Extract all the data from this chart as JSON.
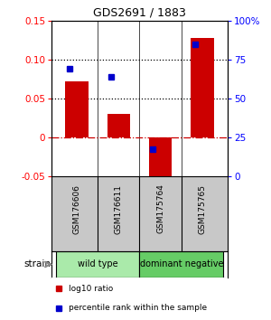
{
  "title": "GDS2691 / 1883",
  "samples": [
    "GSM176606",
    "GSM176611",
    "GSM175764",
    "GSM175765"
  ],
  "log10_ratio": [
    0.072,
    0.03,
    -0.055,
    0.128
  ],
  "percentile_rank": [
    0.088,
    0.078,
    -0.015,
    0.12
  ],
  "ylim_left": [
    -0.05,
    0.15
  ],
  "ylim_right": [
    0,
    100
  ],
  "yticks_left": [
    -0.05,
    0.0,
    0.05,
    0.1,
    0.15
  ],
  "ytick_labels_left": [
    "-0.05",
    "0",
    "0.05",
    "0.10",
    "0.15"
  ],
  "yticks_right": [
    0,
    25,
    50,
    75,
    100
  ],
  "ytick_labels_right": [
    "0",
    "25",
    "50",
    "75",
    "100%"
  ],
  "hlines": [
    0.1,
    0.05
  ],
  "groups": [
    {
      "label": "wild type",
      "indices": [
        0,
        1
      ],
      "color": "#aaeaaa"
    },
    {
      "label": "dominant negative",
      "indices": [
        2,
        3
      ],
      "color": "#66cc66"
    }
  ],
  "bar_color": "#cc0000",
  "dot_color": "#0000cc",
  "bar_width": 0.55,
  "strain_label": "strain",
  "legend_items": [
    {
      "color": "#cc0000",
      "label": "log10 ratio"
    },
    {
      "color": "#0000cc",
      "label": "percentile rank within the sample"
    }
  ],
  "background_color": "#ffffff",
  "label_area_color": "#c8c8c8",
  "zero_line_color": "#cc0000",
  "title_fontsize": 9
}
